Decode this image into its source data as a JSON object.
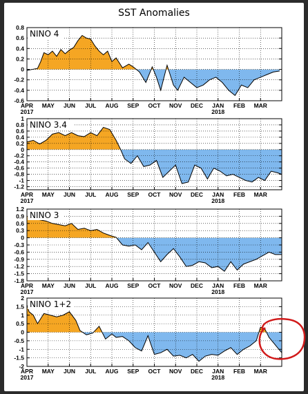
{
  "page": {
    "title": "SST Anomalies"
  },
  "colors": {
    "positive": "#f5a623",
    "negative": "#7fb8ee",
    "line": "#000000",
    "highlight_circle": "#d11a1a",
    "grid": "#000000"
  },
  "x_axis": {
    "months": [
      "APR",
      "MAY",
      "JUN",
      "JUL",
      "AUG",
      "SEP",
      "OCT",
      "NOV",
      "DEC",
      "JAN",
      "FEB",
      "MAR"
    ],
    "year_labels": [
      {
        "text": "2017",
        "under_month": "APR"
      },
      {
        "text": "2018",
        "under_month": "JAN"
      }
    ],
    "grid": "dotted vertical at month starts, dotted horizontal at major ticks"
  },
  "annotation": {
    "type": "hand-drawn circle",
    "color": "red",
    "around": "end of NINO 1+2 panel (MAR)"
  },
  "chart_data": [
    {
      "type": "area",
      "label": "NINO 4",
      "ylim": [
        -0.6,
        0.8
      ],
      "yticks": [
        "0.8",
        "0.6",
        "0.4",
        "0.2",
        "0",
        "-0.2",
        "-0.4",
        "-0.6"
      ],
      "ytick_values": [
        0.8,
        0.6,
        0.4,
        0.2,
        0,
        -0.2,
        -0.4,
        -0.6
      ],
      "x_months": [
        0,
        0.25,
        0.5,
        0.65,
        0.8,
        1.0,
        1.2,
        1.4,
        1.6,
        1.8,
        2.0,
        2.2,
        2.4,
        2.6,
        2.8,
        3.0,
        3.2,
        3.4,
        3.6,
        3.8,
        4.0,
        4.2,
        4.5,
        4.8,
        5.0,
        5.3,
        5.6,
        5.9,
        6.1,
        6.3,
        6.6,
        6.9,
        7.1,
        7.4,
        7.7,
        8.0,
        8.3,
        8.6,
        8.9,
        9.2,
        9.5,
        9.8,
        10.1,
        10.4,
        10.7,
        11.0,
        11.3,
        11.6,
        11.9
      ],
      "values": [
        -0.02,
        0.0,
        0.02,
        0.15,
        0.32,
        0.28,
        0.35,
        0.25,
        0.38,
        0.3,
        0.37,
        0.42,
        0.55,
        0.65,
        0.6,
        0.58,
        0.45,
        0.35,
        0.28,
        0.35,
        0.15,
        0.22,
        0.03,
        0.1,
        0.05,
        -0.05,
        -0.25,
        0.05,
        -0.15,
        -0.4,
        0.08,
        -0.3,
        -0.4,
        -0.15,
        -0.25,
        -0.35,
        -0.3,
        -0.2,
        -0.15,
        -0.25,
        -0.4,
        -0.5,
        -0.3,
        -0.35,
        -0.2,
        -0.15,
        -0.1,
        -0.05,
        -0.03
      ]
    },
    {
      "type": "area",
      "label": "NINO 3.4",
      "ylim": [
        -1.3,
        1.0
      ],
      "yticks": [
        "1",
        "0.8",
        "0.6",
        "0.4",
        "0.2",
        "0",
        "-0.2",
        "-0.4",
        "-0.6",
        "-0.8",
        "-1",
        "-1.2"
      ],
      "ytick_values": [
        1,
        0.8,
        0.6,
        0.4,
        0.2,
        0,
        -0.2,
        -0.4,
        -0.6,
        -0.8,
        -1,
        -1.2
      ],
      "x_months": [
        0,
        0.3,
        0.6,
        0.9,
        1.2,
        1.5,
        1.8,
        2.1,
        2.4,
        2.7,
        3.0,
        3.3,
        3.6,
        3.9,
        4.2,
        4.4,
        4.6,
        4.9,
        5.2,
        5.5,
        5.8,
        6.1,
        6.4,
        6.7,
        7.0,
        7.3,
        7.6,
        7.9,
        8.2,
        8.5,
        8.8,
        9.1,
        9.4,
        9.7,
        10.0,
        10.3,
        10.6,
        10.9,
        11.2,
        11.5,
        11.8,
        12.0
      ],
      "values": [
        0.25,
        0.3,
        0.18,
        0.3,
        0.5,
        0.55,
        0.45,
        0.55,
        0.45,
        0.42,
        0.55,
        0.45,
        0.72,
        0.65,
        0.3,
        0.02,
        -0.3,
        -0.45,
        -0.2,
        -0.55,
        -0.5,
        -0.35,
        -0.9,
        -0.7,
        -0.5,
        -1.1,
        -1.05,
        -0.5,
        -0.6,
        -0.95,
        -0.6,
        -0.7,
        -0.85,
        -0.8,
        -0.9,
        -1.0,
        -1.05,
        -0.9,
        -1.0,
        -0.7,
        -0.75,
        -0.8
      ]
    },
    {
      "type": "area",
      "label": "NINO 3",
      "ylim": [
        -1.8,
        1.2
      ],
      "yticks": [
        "1.2",
        "0.9",
        "0.6",
        "0.3",
        "0",
        "-0.3",
        "-0.6",
        "-0.9",
        "-1.2",
        "-1.5",
        "-1.8"
      ],
      "ytick_values": [
        1.2,
        0.9,
        0.6,
        0.3,
        0,
        -0.3,
        -0.6,
        -0.9,
        -1.2,
        -1.5,
        -1.8
      ],
      "x_months": [
        0,
        0.3,
        0.6,
        0.9,
        1.2,
        1.5,
        1.8,
        2.1,
        2.4,
        2.7,
        3.0,
        3.3,
        3.6,
        3.9,
        4.2,
        4.5,
        4.8,
        5.1,
        5.4,
        5.7,
        6.0,
        6.3,
        6.6,
        6.9,
        7.2,
        7.5,
        7.8,
        8.1,
        8.4,
        8.7,
        9.0,
        9.3,
        9.6,
        9.9,
        10.2,
        10.5,
        10.8,
        11.1,
        11.4,
        11.7,
        12.0
      ],
      "values": [
        0.9,
        0.8,
        0.75,
        0.7,
        0.6,
        0.55,
        0.5,
        0.6,
        0.35,
        0.4,
        0.3,
        0.35,
        0.2,
        0.1,
        0.02,
        -0.3,
        -0.35,
        -0.3,
        -0.5,
        -0.2,
        -0.6,
        -1.0,
        -0.7,
        -0.45,
        -0.8,
        -1.2,
        -1.15,
        -1.0,
        -1.05,
        -1.25,
        -1.2,
        -1.4,
        -1.0,
        -1.35,
        -1.1,
        -1.0,
        -0.9,
        -0.75,
        -0.6,
        -0.7,
        -0.7
      ]
    },
    {
      "type": "area",
      "label": "NINO 1+2",
      "ylim": [
        -2.0,
        2.0
      ],
      "yticks": [
        "2",
        "1.5",
        "1",
        "0.5",
        "0",
        "-0.5",
        "-1",
        "-1.5",
        "-2"
      ],
      "ytick_values": [
        2,
        1.5,
        1,
        0.5,
        0,
        -0.5,
        -1,
        -1.5,
        -2
      ],
      "x_months": [
        0,
        0.1,
        0.3,
        0.5,
        0.8,
        1.1,
        1.4,
        1.7,
        2.0,
        2.3,
        2.5,
        2.8,
        3.1,
        3.4,
        3.7,
        4.0,
        4.2,
        4.5,
        4.8,
        5.1,
        5.4,
        5.7,
        6.0,
        6.3,
        6.6,
        6.9,
        7.2,
        7.5,
        7.8,
        8.1,
        8.4,
        8.7,
        9.0,
        9.3,
        9.6,
        9.9,
        10.2,
        10.5,
        10.8,
        11.0,
        11.2,
        11.4,
        11.6,
        11.8,
        12.0
      ],
      "values": [
        1.6,
        1.2,
        1.0,
        0.5,
        1.1,
        1.0,
        0.9,
        1.0,
        1.2,
        0.7,
        0.1,
        -0.15,
        -0.05,
        0.35,
        -0.4,
        -0.1,
        -0.3,
        -0.25,
        -0.5,
        -0.9,
        -1.1,
        -0.2,
        -1.3,
        -1.2,
        -1.0,
        -1.4,
        -1.35,
        -1.5,
        -1.3,
        -1.7,
        -1.4,
        -1.3,
        -1.35,
        -1.1,
        -0.9,
        -1.3,
        -1.0,
        -0.8,
        -0.5,
        0.3,
        0.2,
        -0.3,
        -0.6,
        -0.9,
        -1.2
      ]
    }
  ]
}
